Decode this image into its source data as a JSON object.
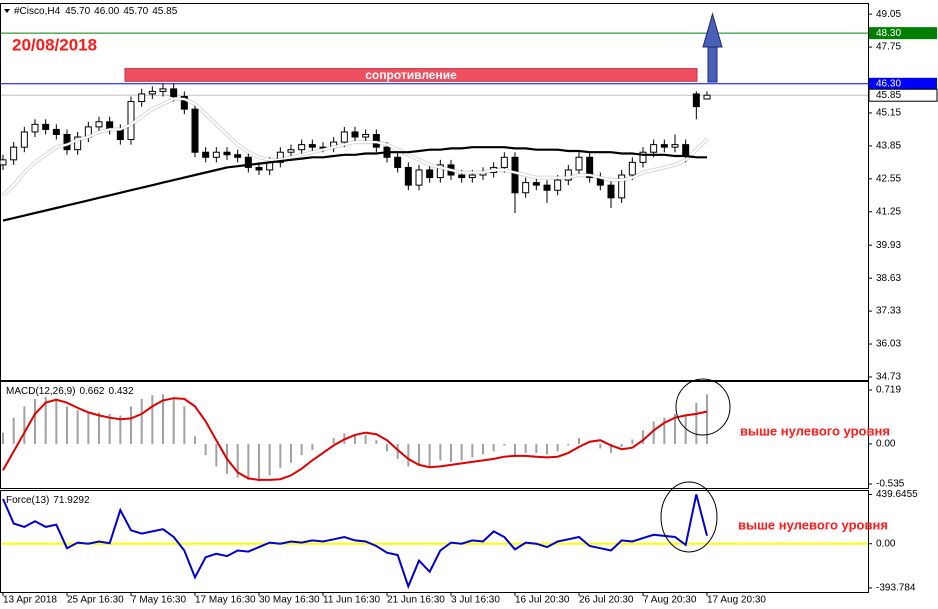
{
  "chart_data": [
    {
      "type": "candlestick",
      "title": "#Cisco,H4",
      "ohlc_labels": [
        "45.70",
        "46.00",
        "45.70",
        "45.85"
      ],
      "annotation": "20/08/2018",
      "categories": [
        "13 Apr 2018",
        null,
        null,
        null,
        null,
        null,
        "25 Apr 16:30",
        null,
        null,
        null,
        null,
        null,
        "7 May 16:30",
        null,
        null,
        null,
        null,
        null,
        "17 May 16:30",
        null,
        null,
        null,
        null,
        null,
        "30 May 16:30",
        null,
        null,
        null,
        null,
        null,
        "11 Jun 16:30",
        null,
        null,
        null,
        null,
        null,
        "21 Jun 16:30",
        null,
        null,
        null,
        null,
        null,
        "3 Jul 16:30",
        null,
        null,
        null,
        null,
        null,
        "16 Jul 20:30",
        null,
        null,
        null,
        null,
        null,
        "26 Jul 20:30",
        null,
        null,
        null,
        null,
        null,
        "7 Aug 20:30",
        null,
        null,
        null,
        null,
        null,
        "17 Aug 20:30"
      ],
      "open": [
        43.1,
        43.3,
        43.8,
        44.4,
        44.7,
        44.5,
        44.3,
        43.7,
        44.2,
        44.6,
        44.8,
        44.5,
        44.1,
        45.6,
        45.9,
        46.0,
        46.1,
        45.8,
        45.3,
        43.6,
        43.4,
        43.6,
        43.5,
        43.4,
        43.0,
        42.9,
        43.2,
        43.6,
        43.7,
        43.9,
        43.8,
        43.8,
        44.0,
        44.4,
        44.2,
        44.3,
        43.8,
        43.4,
        43.0,
        42.3,
        42.9,
        42.6,
        43.1,
        42.7,
        42.6,
        42.7,
        42.8,
        43.0,
        43.4,
        42.0,
        42.4,
        42.3,
        42.1,
        42.5,
        42.9,
        43.4,
        42.6,
        42.3,
        41.8,
        42.7,
        43.2,
        43.6,
        43.9,
        43.8,
        43.9,
        45.9,
        45.7
      ],
      "high": [
        43.5,
        44.0,
        44.6,
        44.9,
        44.9,
        44.7,
        44.5,
        44.4,
        44.8,
        45.0,
        45.0,
        44.7,
        45.8,
        46.1,
        46.2,
        46.3,
        46.3,
        46.0,
        45.5,
        43.8,
        43.8,
        43.8,
        43.7,
        43.6,
        43.2,
        43.4,
        43.8,
        43.9,
        44.1,
        44.1,
        44.0,
        44.2,
        44.6,
        44.6,
        44.5,
        44.5,
        44.0,
        43.6,
        43.2,
        43.1,
        43.1,
        43.3,
        43.3,
        42.9,
        42.9,
        43.0,
        43.2,
        43.6,
        43.6,
        42.6,
        42.6,
        42.5,
        42.7,
        43.1,
        43.6,
        43.6,
        42.8,
        42.5,
        42.9,
        43.4,
        43.8,
        44.1,
        44.1,
        44.3,
        44.1,
        46.0,
        46.0
      ],
      "low": [
        42.9,
        43.1,
        43.6,
        44.2,
        44.3,
        44.1,
        43.5,
        43.5,
        44.0,
        44.4,
        44.3,
        43.9,
        43.9,
        45.4,
        45.7,
        45.8,
        45.6,
        45.1,
        43.4,
        43.2,
        43.2,
        43.3,
        43.2,
        42.8,
        42.7,
        42.7,
        43.0,
        43.4,
        43.5,
        43.6,
        43.6,
        43.6,
        43.8,
        44.0,
        44.0,
        43.6,
        43.2,
        42.8,
        42.1,
        42.1,
        42.4,
        42.4,
        42.5,
        42.4,
        42.4,
        42.5,
        42.6,
        42.8,
        41.2,
        41.8,
        42.1,
        41.6,
        41.9,
        42.3,
        42.7,
        42.4,
        42.1,
        41.4,
        41.6,
        42.5,
        43.0,
        43.4,
        43.6,
        43.6,
        43.2,
        44.9,
        45.7
      ],
      "close": [
        43.3,
        43.8,
        44.4,
        44.7,
        44.5,
        44.3,
        43.7,
        44.2,
        44.6,
        44.8,
        44.5,
        44.1,
        45.6,
        45.9,
        46.0,
        46.1,
        45.8,
        45.3,
        43.6,
        43.4,
        43.6,
        43.5,
        43.4,
        43.0,
        42.9,
        43.2,
        43.6,
        43.7,
        43.9,
        43.8,
        43.8,
        44.0,
        44.4,
        44.2,
        44.3,
        43.8,
        43.4,
        43.0,
        42.3,
        42.9,
        42.6,
        43.1,
        42.7,
        42.6,
        42.7,
        42.8,
        43.0,
        43.4,
        42.0,
        42.4,
        42.3,
        42.1,
        42.5,
        42.9,
        43.4,
        42.6,
        42.3,
        41.8,
        42.7,
        43.2,
        43.6,
        43.9,
        43.8,
        43.9,
        43.5,
        45.4,
        45.85
      ],
      "series": [
        {
          "color": "#ffffff",
          "values": [
            41.9,
            42.3,
            42.8,
            43.2,
            43.5,
            43.8,
            43.9,
            44.1,
            44.2,
            44.4,
            44.5,
            44.5,
            44.7,
            45.0,
            45.3,
            45.5,
            45.7,
            45.7,
            45.5,
            45.1,
            44.7,
            44.3,
            43.9,
            43.6,
            43.4,
            43.3,
            43.3,
            43.4,
            43.5,
            43.6,
            43.7,
            43.8,
            43.9,
            44.0,
            44.0,
            44.0,
            43.9,
            43.7,
            43.5,
            43.3,
            43.1,
            43.0,
            42.9,
            42.8,
            42.8,
            42.8,
            42.9,
            42.9,
            42.8,
            42.7,
            42.6,
            42.6,
            42.6,
            42.6,
            42.7,
            42.7,
            42.6,
            42.5,
            42.5,
            42.6,
            42.8,
            42.9,
            43.0,
            43.1,
            43.3,
            43.7,
            44.1
          ]
        },
        {
          "color": "#000000",
          "values": [
            40.9,
            41.0,
            41.1,
            41.2,
            41.3,
            41.4,
            41.5,
            41.6,
            41.7,
            41.8,
            41.9,
            42.0,
            42.1,
            42.2,
            42.3,
            42.4,
            42.5,
            42.6,
            42.7,
            42.8,
            42.9,
            43.0,
            43.05,
            43.1,
            43.15,
            43.2,
            43.25,
            43.3,
            43.35,
            43.4,
            43.4,
            43.45,
            43.5,
            43.5,
            43.55,
            43.55,
            43.6,
            43.6,
            43.6,
            43.65,
            43.7,
            43.7,
            43.75,
            43.75,
            43.8,
            43.8,
            43.8,
            43.8,
            43.75,
            43.75,
            43.7,
            43.7,
            43.7,
            43.65,
            43.65,
            43.6,
            43.6,
            43.6,
            43.55,
            43.55,
            43.5,
            43.5,
            43.5,
            43.45,
            43.45,
            43.4,
            43.4
          ]
        }
      ],
      "levels": [
        {
          "value": 48.3,
          "label": "48.30",
          "color": "#008000"
        },
        {
          "value": 46.3,
          "label": "46.30",
          "color": "#0000ff"
        }
      ],
      "zone": {
        "label": "сопротивление",
        "low": 46.4,
        "high": 46.9,
        "color": "#ef4f5f"
      },
      "ylim": [
        34.61,
        49.45
      ],
      "yticks": [
        49.05,
        47.75,
        45.15,
        43.85,
        42.55,
        41.25,
        39.93,
        38.63,
        37.33,
        36.03,
        34.73
      ],
      "grid": false
    },
    {
      "type": "macd",
      "title": "MACD(12,26,9)",
      "annotation": "выше нулевого уровня",
      "series": [
        {
          "style": "histogram",
          "color": "#a0a0a0",
          "values": [
            0.15,
            0.35,
            0.5,
            0.6,
            0.63,
            0.6,
            0.5,
            0.45,
            0.42,
            0.42,
            0.4,
            0.38,
            0.5,
            0.6,
            0.65,
            0.66,
            0.62,
            0.5,
            0.1,
            -0.15,
            -0.3,
            -0.4,
            -0.45,
            -0.48,
            -0.5,
            -0.42,
            -0.32,
            -0.25,
            -0.15,
            -0.08,
            0,
            0.08,
            0.14,
            0.13,
            0.12,
            0.05,
            -0.1,
            -0.2,
            -0.3,
            -0.28,
            -0.3,
            -0.22,
            -0.24,
            -0.22,
            -0.18,
            -0.14,
            -0.1,
            -0.02,
            -0.15,
            -0.12,
            -0.12,
            -0.14,
            -0.1,
            -0.02,
            0.08,
            0,
            -0.06,
            -0.12,
            -0.04,
            0.06,
            0.18,
            0.3,
            0.35,
            0.4,
            0.38,
            0.55,
            0.662
          ]
        },
        {
          "style": "line",
          "color": "#e00000",
          "values": [
            -0.35,
            -0.1,
            0.15,
            0.4,
            0.55,
            0.59,
            0.55,
            0.48,
            0.42,
            0.38,
            0.35,
            0.33,
            0.34,
            0.4,
            0.5,
            0.58,
            0.61,
            0.6,
            0.5,
            0.3,
            0.05,
            -0.2,
            -0.38,
            -0.46,
            -0.48,
            -0.48,
            -0.47,
            -0.42,
            -0.33,
            -0.22,
            -0.12,
            -0.02,
            0.06,
            0.12,
            0.15,
            0.13,
            0.05,
            -0.08,
            -0.2,
            -0.28,
            -0.31,
            -0.3,
            -0.28,
            -0.26,
            -0.24,
            -0.22,
            -0.2,
            -0.17,
            -0.16,
            -0.16,
            -0.17,
            -0.18,
            -0.17,
            -0.12,
            -0.04,
            0.03,
            0.05,
            -0.02,
            -0.07,
            -0.05,
            0.05,
            0.18,
            0.28,
            0.35,
            0.38,
            0.4,
            0.432
          ]
        }
      ],
      "ylim": [
        -0.588,
        0.826
      ],
      "yticks": [
        0.719,
        {
          "value": 0,
          "label": "0.00"
        },
        -0.535
      ],
      "grid": false
    },
    {
      "type": "line",
      "title": "Force(13)",
      "annotation": "выше нулевого уровня",
      "series": [
        {
          "style": "line",
          "color": "#0000d0",
          "values": [
            400,
            180,
            150,
            200,
            150,
            170,
            -40,
            10,
            0,
            20,
            5,
            300,
            120,
            90,
            110,
            130,
            60,
            -60,
            -300,
            -120,
            -90,
            -110,
            -60,
            -70,
            -30,
            10,
            0,
            20,
            10,
            30,
            20,
            40,
            60,
            30,
            20,
            -20,
            -80,
            -100,
            -380,
            -150,
            -250,
            -60,
            10,
            0,
            30,
            20,
            110,
            60,
            -50,
            10,
            0,
            -30,
            20,
            40,
            60,
            -20,
            -40,
            -60,
            30,
            20,
            50,
            80,
            70,
            60,
            -10,
            440,
            71.9292
          ]
        }
      ],
      "levels": [
        {
          "value": 0,
          "color": "#ffff00"
        }
      ],
      "ylim": [
        -430,
        470
      ],
      "yticks": [
        439.6455,
        {
          "value": 0,
          "label": "0.00"
        },
        -393.784
      ],
      "grid": false
    }
  ]
}
